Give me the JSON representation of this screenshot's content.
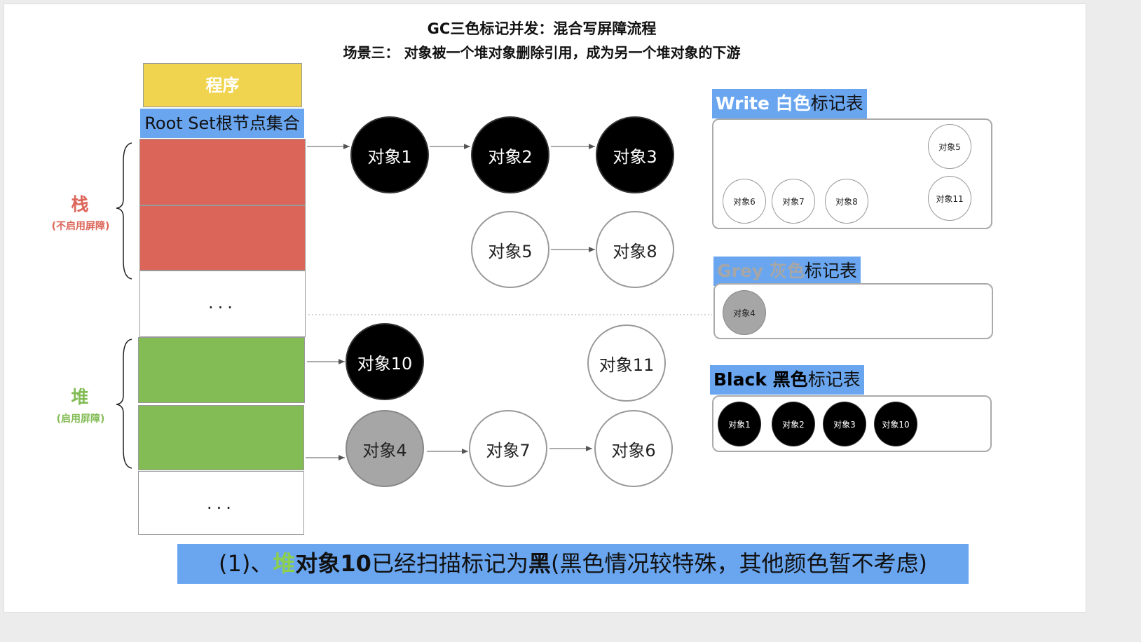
{
  "title": "GC三色标记并发：混合写屏障流程",
  "subtitle": "场景三： 对象被一个堆对象删除引用，成为另一个堆对象的下游",
  "program_label": "程序",
  "root_set_label": "Root Set根节点集合",
  "ellipsis": "...",
  "stack": {
    "label": "栈",
    "note": "(不启用屏障)",
    "color": "#dc6559"
  },
  "heap": {
    "label": "堆",
    "note": "(启用屏障)",
    "color": "#83bc55"
  },
  "objects": {
    "o1": {
      "label": "对象1",
      "color": "black"
    },
    "o2": {
      "label": "对象2",
      "color": "black"
    },
    "o3": {
      "label": "对象3",
      "color": "black"
    },
    "o5": {
      "label": "对象5",
      "color": "white"
    },
    "o8": {
      "label": "对象8",
      "color": "white"
    },
    "o10": {
      "label": "对象10",
      "color": "black"
    },
    "o11": {
      "label": "对象11",
      "color": "white"
    },
    "o4": {
      "label": "对象4",
      "color": "grey"
    },
    "o7": {
      "label": "对象7",
      "color": "white"
    },
    "o6": {
      "label": "对象6",
      "color": "white"
    }
  },
  "tables": {
    "white": {
      "title_en": "Write",
      "title_color": "白色",
      "title_rest": "标记表",
      "items": [
        "对象6",
        "对象7",
        "对象8",
        "对象5",
        "对象11"
      ]
    },
    "grey": {
      "title_en": "Grey",
      "title_color": "灰色",
      "title_rest": "标记表",
      "items": [
        "对象4"
      ]
    },
    "black": {
      "title_en": "Black",
      "title_color": "黑色",
      "title_rest": "标记表",
      "items": [
        "对象1",
        "对象2",
        "对象3",
        "对象10"
      ]
    }
  },
  "caption": {
    "prefix": "(1)、",
    "heap_word": "堆",
    "bold_obj": "对象10",
    "middle": "已经扫描标记为",
    "black_word": "黑",
    "suffix": "(黑色情况较特殊，其他颜色暂不考虑)"
  }
}
